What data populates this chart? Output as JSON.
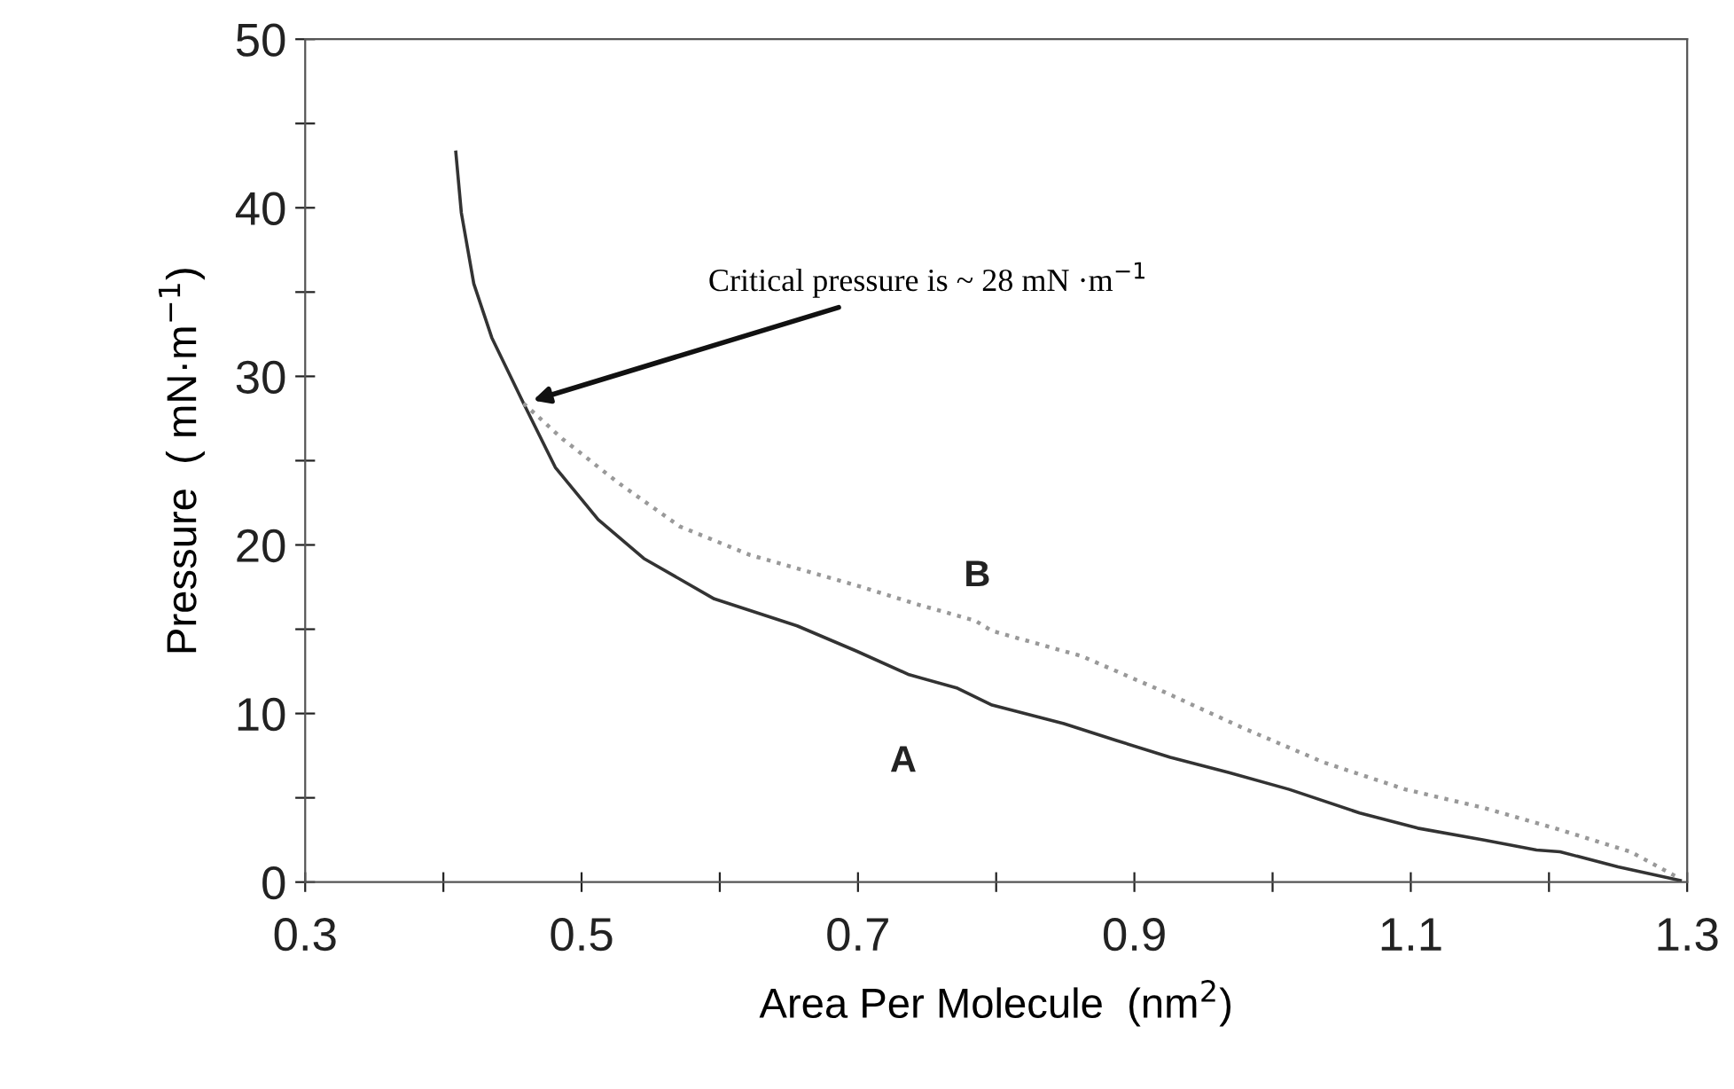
{
  "chart_data": {
    "type": "line",
    "xlabel": "Area Per Molecule  (nm$^{2}$)",
    "ylabel": "Pressure  ( mN·m$^{−1}$)",
    "xlim": [
      0.3,
      1.3
    ],
    "ylim": [
      0,
      50
    ],
    "xticks": [
      0.3,
      {
        "value": 0.4,
        "label": null
      },
      0.5,
      {
        "value": 0.6,
        "label": null
      },
      0.7,
      {
        "value": 0.8,
        "label": null
      },
      0.9,
      {
        "value": 1.0,
        "label": null
      },
      1.1,
      {
        "value": 1.2,
        "label": null
      },
      1.3
    ],
    "yticks": [
      0,
      {
        "value": 5,
        "label": null
      },
      10,
      {
        "value": 15,
        "label": null
      },
      20,
      {
        "value": 25,
        "label": null
      },
      30,
      {
        "value": 35,
        "label": null
      },
      40,
      {
        "value": 45,
        "label": null
      },
      50
    ],
    "grid": false,
    "legend": false,
    "marker": "none",
    "series": [
      {
        "name": "A",
        "color": "#333333",
        "line_style": "solid",
        "x": [
          0.409,
          0.413,
          0.422,
          0.435,
          0.458,
          0.481,
          0.512,
          0.545,
          0.596,
          0.656,
          0.699,
          0.737,
          0.772,
          0.797,
          0.849,
          0.887,
          0.926,
          0.968,
          1.012,
          1.063,
          1.105,
          1.153,
          1.191,
          1.208,
          1.25,
          1.295
        ],
        "values": [
          43.3,
          39.7,
          35.5,
          32.3,
          28.4,
          24.6,
          21.5,
          19.2,
          16.8,
          15.2,
          13.7,
          12.3,
          11.5,
          10.5,
          9.4,
          8.4,
          7.4,
          6.5,
          5.5,
          4.1,
          3.2,
          2.5,
          1.9,
          1.8,
          0.9,
          0.1
        ]
      },
      {
        "name": "B",
        "color": "#999999",
        "line_style": "dotted",
        "x": [
          0.458,
          0.486,
          0.528,
          0.571,
          0.622,
          0.699,
          0.742,
          0.785,
          0.797,
          0.862,
          0.921,
          0.977,
          1.037,
          1.096,
          1.153,
          1.208,
          1.259,
          1.295
        ],
        "values": [
          28.4,
          26.3,
          23.6,
          21.1,
          19.4,
          17.6,
          16.5,
          15.5,
          14.9,
          13.4,
          11.3,
          9.2,
          7.1,
          5.5,
          4.4,
          3.1,
          1.8,
          0.2
        ]
      }
    ],
    "annotations": [
      "Critical pressure is ~ 28 mN ·m$^{−1}$"
    ]
  }
}
